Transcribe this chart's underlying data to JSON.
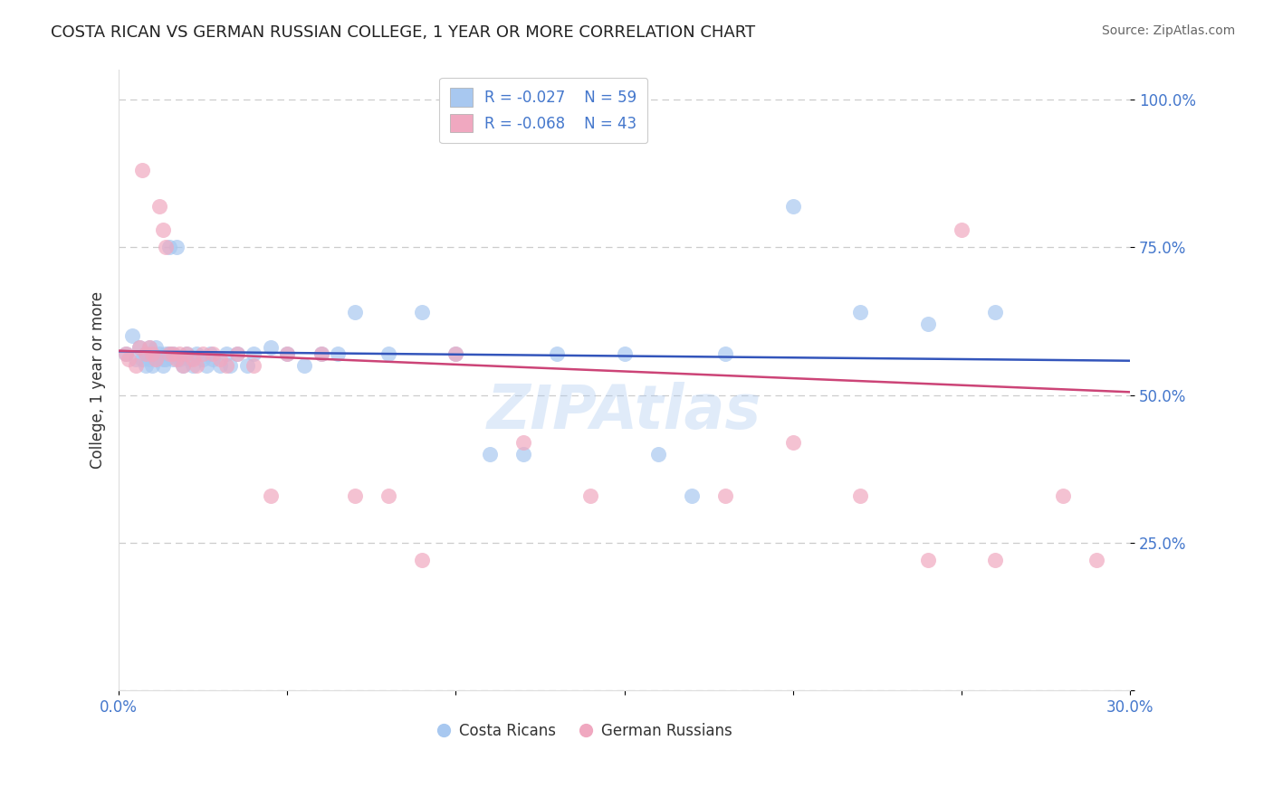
{
  "title": "COSTA RICAN VS GERMAN RUSSIAN COLLEGE, 1 YEAR OR MORE CORRELATION CHART",
  "source": "Source: ZipAtlas.com",
  "ylabel": "College, 1 year or more",
  "x_tick_labels": [
    "0.0%",
    "",
    "",
    "",
    "",
    "",
    "30.0%"
  ],
  "x_ticks": [
    0.0,
    0.05,
    0.1,
    0.15,
    0.2,
    0.25,
    0.3
  ],
  "y_ticks": [
    0.0,
    0.25,
    0.5,
    0.75,
    1.0
  ],
  "y_tick_labels": [
    "",
    "25.0%",
    "50.0%",
    "75.0%",
    "100.0%"
  ],
  "xlim": [
    0.0,
    0.3
  ],
  "ylim": [
    0.0,
    1.05
  ],
  "color_blue": "#a8c8f0",
  "color_pink": "#f0a8c0",
  "line_blue": "#3355bb",
  "line_pink": "#cc4477",
  "grid_color": "#cccccc",
  "background_color": "#ffffff",
  "title_color": "#222222",
  "source_color": "#666666",
  "axis_label_color": "#333333",
  "tick_label_color": "#4477cc",
  "legend_text_color": "#4477cc",
  "blue_scatter_x": [
    0.002,
    0.004,
    0.005,
    0.006,
    0.007,
    0.008,
    0.008,
    0.009,
    0.009,
    0.01,
    0.01,
    0.011,
    0.011,
    0.012,
    0.013,
    0.013,
    0.014,
    0.014,
    0.015,
    0.015,
    0.016,
    0.016,
    0.017,
    0.018,
    0.019,
    0.02,
    0.021,
    0.022,
    0.023,
    0.025,
    0.026,
    0.027,
    0.028,
    0.03,
    0.032,
    0.033,
    0.035,
    0.038,
    0.04,
    0.045,
    0.05,
    0.055,
    0.06,
    0.065,
    0.07,
    0.08,
    0.09,
    0.1,
    0.11,
    0.12,
    0.13,
    0.15,
    0.16,
    0.17,
    0.18,
    0.2,
    0.22,
    0.24,
    0.26
  ],
  "blue_scatter_y": [
    0.57,
    0.6,
    0.56,
    0.58,
    0.56,
    0.57,
    0.55,
    0.58,
    0.56,
    0.55,
    0.57,
    0.56,
    0.58,
    0.57,
    0.56,
    0.55,
    0.57,
    0.56,
    0.57,
    0.75,
    0.57,
    0.56,
    0.75,
    0.56,
    0.55,
    0.57,
    0.56,
    0.55,
    0.57,
    0.56,
    0.55,
    0.57,
    0.56,
    0.55,
    0.57,
    0.55,
    0.57,
    0.55,
    0.57,
    0.58,
    0.57,
    0.55,
    0.57,
    0.57,
    0.64,
    0.57,
    0.64,
    0.57,
    0.4,
    0.4,
    0.57,
    0.57,
    0.4,
    0.33,
    0.57,
    0.82,
    0.64,
    0.62,
    0.64
  ],
  "pink_scatter_x": [
    0.002,
    0.003,
    0.005,
    0.006,
    0.007,
    0.008,
    0.009,
    0.01,
    0.011,
    0.012,
    0.013,
    0.014,
    0.015,
    0.016,
    0.017,
    0.018,
    0.019,
    0.02,
    0.022,
    0.023,
    0.025,
    0.028,
    0.03,
    0.032,
    0.035,
    0.04,
    0.045,
    0.05,
    0.06,
    0.07,
    0.08,
    0.09,
    0.1,
    0.12,
    0.14,
    0.18,
    0.2,
    0.22,
    0.24,
    0.25,
    0.26,
    0.28,
    0.29
  ],
  "pink_scatter_y": [
    0.57,
    0.56,
    0.55,
    0.58,
    0.88,
    0.57,
    0.58,
    0.57,
    0.56,
    0.82,
    0.78,
    0.75,
    0.57,
    0.57,
    0.56,
    0.57,
    0.55,
    0.57,
    0.56,
    0.55,
    0.57,
    0.57,
    0.56,
    0.55,
    0.57,
    0.55,
    0.33,
    0.57,
    0.57,
    0.33,
    0.33,
    0.22,
    0.57,
    0.42,
    0.33,
    0.33,
    0.42,
    0.33,
    0.22,
    0.78,
    0.22,
    0.33,
    0.22
  ],
  "blue_line_x0": 0.0,
  "blue_line_x1": 0.3,
  "blue_line_y0": 0.574,
  "blue_line_y1": 0.558,
  "pink_line_x0": 0.0,
  "pink_line_x1": 0.3,
  "pink_line_y0": 0.575,
  "pink_line_y1": 0.505
}
